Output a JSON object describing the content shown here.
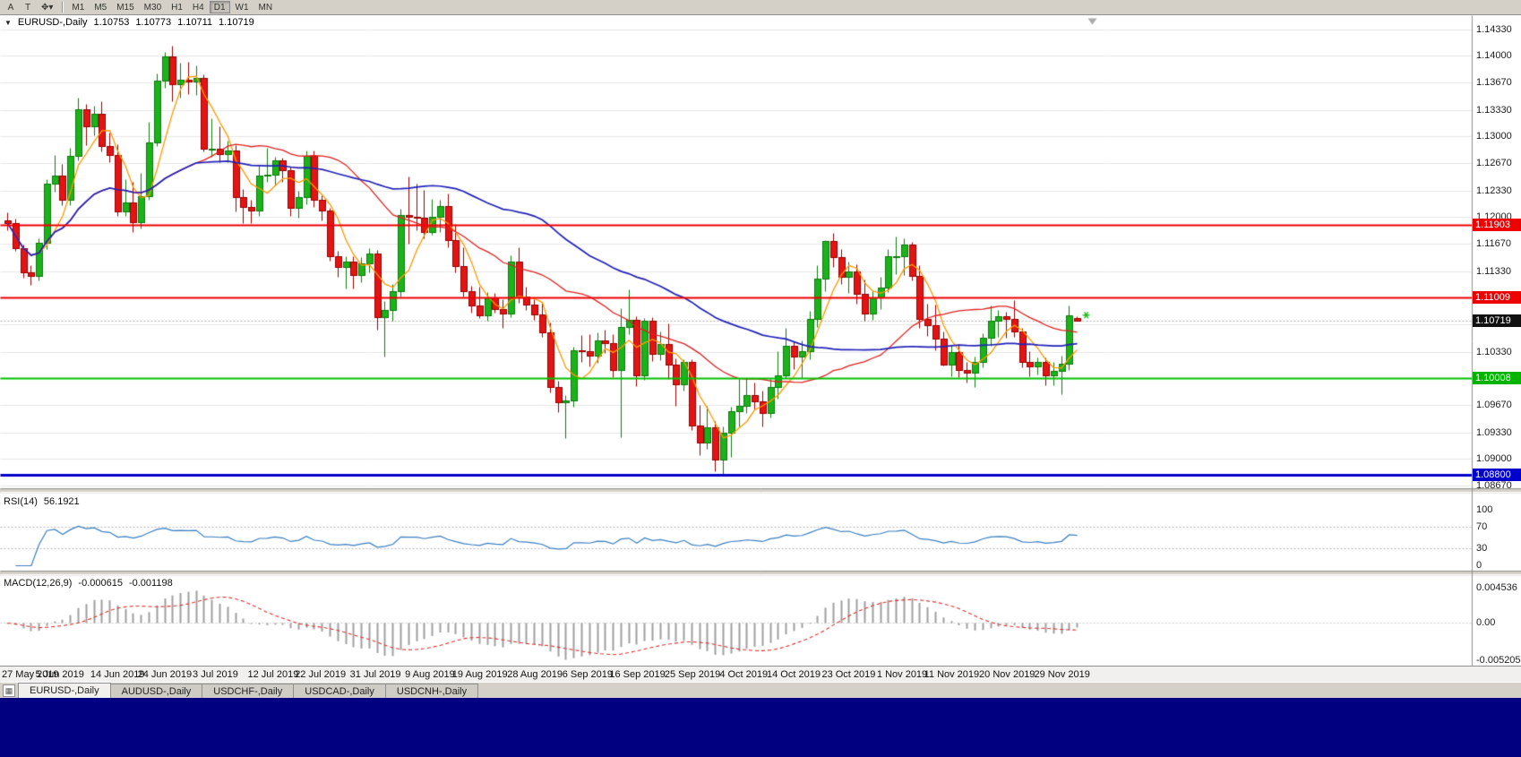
{
  "toolbar": {
    "left_buttons": [
      {
        "name": "annotation-a",
        "label": "A"
      },
      {
        "name": "text-tool",
        "label": "T"
      },
      {
        "name": "pointer-tool",
        "label": "✥",
        "caret": "▾"
      }
    ],
    "timeframes": [
      "M1",
      "M5",
      "M15",
      "M30",
      "H1",
      "H4",
      "D1",
      "W1",
      "MN"
    ],
    "active_timeframe": "D1"
  },
  "chart": {
    "title": {
      "dropdown_icon": "▼",
      "symbol": "EURUSD-,Daily",
      "open": "1.10753",
      "high": "1.10773",
      "low": "1.10711",
      "close": "1.10719"
    },
    "price_axis_labels": [
      "1.14330",
      "1.14000",
      "1.13670",
      "1.13330",
      "1.13000",
      "1.12670",
      "1.12330",
      "1.12000",
      "1.11670",
      "1.11330",
      "1.11000",
      "1.10670",
      "1.10330",
      "1.10000",
      "1.09670",
      "1.09330",
      "1.09000",
      "1.08670"
    ],
    "price_tags": [
      {
        "name": "resistance-tag-upper",
        "text": "1.11903",
        "bg": "#ee0000"
      },
      {
        "name": "resistance-tag-lower",
        "text": "1.11009",
        "bg": "#ee0000"
      },
      {
        "name": "current-price-tag",
        "text": "1.10719",
        "bg": "#111111"
      },
      {
        "name": "support-tag",
        "text": "1.10008",
        "bg": "#00b400"
      },
      {
        "name": "lower-level-tag",
        "text": "1.08800",
        "bg": "#0000cc"
      }
    ],
    "level_lines": [
      {
        "price": 1.11903,
        "color": "#ee0000",
        "width": 2
      },
      {
        "price": 1.11009,
        "color": "#ee0000",
        "width": 2
      },
      {
        "price": 1.10008,
        "color": "#00c000",
        "width": 2
      },
      {
        "price": 1.088,
        "color": "#0000cc",
        "width": 3
      }
    ],
    "current_price_line": {
      "price": 1.10719,
      "color": "#b0b0b0"
    },
    "signal_marker": {
      "index": 136,
      "price": 1.1079,
      "color": "#00bb00"
    },
    "date_labels": [
      {
        "i": 0,
        "t": "27 May 2019"
      },
      {
        "i": 7,
        "t": "5 Jun 2019"
      },
      {
        "i": 14,
        "t": "14 Jun 2019"
      },
      {
        "i": 20,
        "t": "24 Jun 2019"
      },
      {
        "i": 27,
        "t": "3 Jul 2019"
      },
      {
        "i": 34,
        "t": "12 Jul 2019"
      },
      {
        "i": 40,
        "t": "22 Jul 2019"
      },
      {
        "i": 47,
        "t": "31 Jul 2019"
      },
      {
        "i": 54,
        "t": "9 Aug 2019"
      },
      {
        "i": 60,
        "t": "19 Aug 2019"
      },
      {
        "i": 67,
        "t": "28 Aug 2019"
      },
      {
        "i": 74,
        "t": "6 Sep 2019"
      },
      {
        "i": 80,
        "t": "16 Sep 2019"
      },
      {
        "i": 87,
        "t": "25 Sep 2019"
      },
      {
        "i": 94,
        "t": "4 Oct 2019"
      },
      {
        "i": 100,
        "t": "14 Oct 2019"
      },
      {
        "i": 107,
        "t": "23 Oct 2019"
      },
      {
        "i": 114,
        "t": "1 Nov 2019"
      },
      {
        "i": 120,
        "t": "11 Nov 2019"
      },
      {
        "i": 127,
        "t": "20 Nov 2019"
      },
      {
        "i": 134,
        "t": "29 Nov 2019"
      }
    ]
  },
  "chart_data": {
    "type": "candlestick",
    "symbol": "EURUSD",
    "timeframe": "Daily",
    "x_range": [
      "27 May 2019",
      "3 Dec 2019"
    ],
    "price_range": [
      1.0865,
      1.1448
    ],
    "up_color": "#1cb21c",
    "down_color": "#e41414",
    "candles": [
      [
        1.1196,
        1.1206,
        1.1184,
        1.1193
      ],
      [
        1.1193,
        1.1198,
        1.1158,
        1.1162
      ],
      [
        1.1162,
        1.1166,
        1.1125,
        1.1131
      ],
      [
        1.1131,
        1.114,
        1.1116,
        1.1127
      ],
      [
        1.1127,
        1.1174,
        1.1122,
        1.1168
      ],
      [
        1.1168,
        1.1247,
        1.116,
        1.1241
      ],
      [
        1.1241,
        1.1277,
        1.1232,
        1.1252
      ],
      [
        1.1252,
        1.1266,
        1.1215,
        1.1222
      ],
      [
        1.1222,
        1.1286,
        1.1215,
        1.1276
      ],
      [
        1.1276,
        1.1348,
        1.127,
        1.1334
      ],
      [
        1.1334,
        1.134,
        1.1289,
        1.1312
      ],
      [
        1.1312,
        1.1338,
        1.1301,
        1.1328
      ],
      [
        1.1328,
        1.1344,
        1.1281,
        1.1288
      ],
      [
        1.1288,
        1.1305,
        1.1268,
        1.1277
      ],
      [
        1.1277,
        1.129,
        1.1201,
        1.1207
      ],
      [
        1.1207,
        1.1247,
        1.1202,
        1.1218
      ],
      [
        1.1218,
        1.1244,
        1.1181,
        1.1194
      ],
      [
        1.1194,
        1.1255,
        1.1186,
        1.1226
      ],
      [
        1.1226,
        1.1318,
        1.1222,
        1.1293
      ],
      [
        1.1293,
        1.1378,
        1.1288,
        1.1369
      ],
      [
        1.1369,
        1.1405,
        1.136,
        1.1399
      ],
      [
        1.1399,
        1.1412,
        1.1344,
        1.1365
      ],
      [
        1.1365,
        1.1391,
        1.1348,
        1.137
      ],
      [
        1.137,
        1.1392,
        1.1352,
        1.1368
      ],
      [
        1.1368,
        1.1388,
        1.1351,
        1.1373
      ],
      [
        1.1373,
        1.1377,
        1.1281,
        1.1285
      ],
      [
        1.1285,
        1.1322,
        1.1275,
        1.1285
      ],
      [
        1.1285,
        1.1312,
        1.1268,
        1.1278
      ],
      [
        1.1278,
        1.1295,
        1.1268,
        1.1283
      ],
      [
        1.1283,
        1.1289,
        1.1207,
        1.1225
      ],
      [
        1.1225,
        1.1235,
        1.1193,
        1.1213
      ],
      [
        1.1213,
        1.1222,
        1.1193,
        1.1208
      ],
      [
        1.1208,
        1.1264,
        1.1202,
        1.1252
      ],
      [
        1.1252,
        1.1286,
        1.1244,
        1.1253
      ],
      [
        1.1253,
        1.1275,
        1.1239,
        1.127
      ],
      [
        1.127,
        1.1274,
        1.1244,
        1.1258
      ],
      [
        1.1258,
        1.1262,
        1.1202,
        1.1211
      ],
      [
        1.1211,
        1.1233,
        1.1199,
        1.1225
      ],
      [
        1.1225,
        1.1282,
        1.1216,
        1.1276
      ],
      [
        1.1276,
        1.1282,
        1.1213,
        1.1221
      ],
      [
        1.1221,
        1.1227,
        1.1196,
        1.1208
      ],
      [
        1.1208,
        1.1212,
        1.1146,
        1.1151
      ],
      [
        1.1151,
        1.1158,
        1.1126,
        1.1138
      ],
      [
        1.1138,
        1.1152,
        1.1112,
        1.1145
      ],
      [
        1.1145,
        1.1151,
        1.1111,
        1.1128
      ],
      [
        1.1128,
        1.115,
        1.1119,
        1.1143
      ],
      [
        1.1143,
        1.1162,
        1.1131,
        1.1155
      ],
      [
        1.1155,
        1.1159,
        1.106,
        1.1076
      ],
      [
        1.1076,
        1.1096,
        1.1027,
        1.1085
      ],
      [
        1.1085,
        1.1117,
        1.1072,
        1.1108
      ],
      [
        1.1108,
        1.121,
        1.1101,
        1.1203
      ],
      [
        1.1203,
        1.125,
        1.1167,
        1.12
      ],
      [
        1.12,
        1.1242,
        1.1184,
        1.1199
      ],
      [
        1.1199,
        1.1234,
        1.1174,
        1.1181
      ],
      [
        1.1181,
        1.1223,
        1.1178,
        1.12
      ],
      [
        1.12,
        1.1222,
        1.1181,
        1.1214
      ],
      [
        1.1214,
        1.1229,
        1.1163,
        1.1171
      ],
      [
        1.1171,
        1.1191,
        1.1131,
        1.1139
      ],
      [
        1.1139,
        1.1163,
        1.1102,
        1.1108
      ],
      [
        1.1108,
        1.1115,
        1.1081,
        1.109
      ],
      [
        1.109,
        1.1114,
        1.1075,
        1.1078
      ],
      [
        1.1078,
        1.1107,
        1.1072,
        1.11
      ],
      [
        1.11,
        1.1106,
        1.1082,
        1.1086
      ],
      [
        1.1086,
        1.1098,
        1.1063,
        1.108
      ],
      [
        1.108,
        1.1153,
        1.1076,
        1.1145
      ],
      [
        1.1145,
        1.1163,
        1.1094,
        1.1101
      ],
      [
        1.1101,
        1.1114,
        1.1085,
        1.1092
      ],
      [
        1.1092,
        1.1098,
        1.1073,
        1.1079
      ],
      [
        1.1079,
        1.1094,
        1.1052,
        1.1057
      ],
      [
        1.1057,
        1.1069,
        1.0983,
        1.0989
      ],
      [
        1.0989,
        1.0997,
        1.0958,
        1.097
      ],
      [
        1.097,
        1.0979,
        1.0926,
        1.0973
      ],
      [
        1.0973,
        1.1039,
        1.0965,
        1.1035
      ],
      [
        1.1035,
        1.1054,
        1.1021,
        1.1034
      ],
      [
        1.1034,
        1.1055,
        1.1015,
        1.1028
      ],
      [
        1.1028,
        1.1057,
        1.1019,
        1.1047
      ],
      [
        1.1047,
        1.106,
        1.1032,
        1.1044
      ],
      [
        1.1044,
        1.1055,
        1.1002,
        1.1011
      ],
      [
        1.1011,
        1.1087,
        1.0927,
        1.1064
      ],
      [
        1.1064,
        1.111,
        1.1055,
        1.1073
      ],
      [
        1.1073,
        1.1077,
        1.099,
        1.1004
      ],
      [
        1.1004,
        1.1075,
        1.0998,
        1.1072
      ],
      [
        1.1072,
        1.1076,
        1.1022,
        1.1031
      ],
      [
        1.1031,
        1.1058,
        1.1023,
        1.1043
      ],
      [
        1.1043,
        1.1068,
        1.0999,
        1.1017
      ],
      [
        1.1017,
        1.1025,
        1.0966,
        1.0993
      ],
      [
        1.0993,
        1.1024,
        1.0985,
        1.1021
      ],
      [
        1.1021,
        1.1024,
        1.0936,
        1.0942
      ],
      [
        1.0942,
        1.0967,
        1.0905,
        1.0921
      ],
      [
        1.0921,
        1.0966,
        1.0913,
        1.0939
      ],
      [
        1.0939,
        1.0947,
        1.0885,
        1.0899
      ],
      [
        1.0899,
        1.0941,
        1.0879,
        1.0933
      ],
      [
        1.0933,
        1.0965,
        1.0903,
        1.0959
      ],
      [
        1.0959,
        1.0999,
        1.0941,
        1.0966
      ],
      [
        1.0966,
        1.1,
        1.0957,
        1.0979
      ],
      [
        1.0979,
        1.0995,
        1.0962,
        1.0972
      ],
      [
        1.0972,
        1.0985,
        1.0941,
        1.0957
      ],
      [
        1.0957,
        1.0999,
        1.0952,
        1.0989
      ],
      [
        1.0989,
        1.1034,
        1.0975,
        1.1004
      ],
      [
        1.1004,
        1.1063,
        1.1001,
        1.104
      ],
      [
        1.104,
        1.1046,
        1.1012,
        1.1027
      ],
      [
        1.1027,
        1.1047,
        1.1001,
        1.1034
      ],
      [
        1.1034,
        1.1084,
        1.1024,
        1.1074
      ],
      [
        1.1074,
        1.114,
        1.1064,
        1.1124
      ],
      [
        1.1124,
        1.1172,
        1.1108,
        1.117
      ],
      [
        1.117,
        1.118,
        1.1138,
        1.115
      ],
      [
        1.115,
        1.116,
        1.1117,
        1.1126
      ],
      [
        1.1126,
        1.1145,
        1.1106,
        1.1133
      ],
      [
        1.1133,
        1.1142,
        1.1093,
        1.1105
      ],
      [
        1.1105,
        1.1123,
        1.1072,
        1.108
      ],
      [
        1.108,
        1.1108,
        1.1073,
        1.11
      ],
      [
        1.11,
        1.1126,
        1.1086,
        1.1113
      ],
      [
        1.1113,
        1.116,
        1.1107,
        1.1151
      ],
      [
        1.1151,
        1.1176,
        1.1129,
        1.1152
      ],
      [
        1.1152,
        1.1174,
        1.1128,
        1.1166
      ],
      [
        1.1166,
        1.1169,
        1.1122,
        1.1127
      ],
      [
        1.1127,
        1.114,
        1.1063,
        1.1074
      ],
      [
        1.1074,
        1.1093,
        1.1053,
        1.1066
      ],
      [
        1.1066,
        1.1092,
        1.1035,
        1.1049
      ],
      [
        1.1049,
        1.1058,
        1.1016,
        1.1017
      ],
      [
        1.1017,
        1.1042,
        1.1003,
        1.1033
      ],
      [
        1.1033,
        1.1043,
        1.1002,
        1.101
      ],
      [
        1.101,
        1.1021,
        1.0995,
        1.1007
      ],
      [
        1.1007,
        1.1027,
        1.0989,
        1.1021
      ],
      [
        1.1021,
        1.1056,
        1.1014,
        1.1051
      ],
      [
        1.1051,
        1.109,
        1.1041,
        1.1072
      ],
      [
        1.1072,
        1.1085,
        1.1052,
        1.1077
      ],
      [
        1.1077,
        1.1083,
        1.1051,
        1.1074
      ],
      [
        1.1074,
        1.1097,
        1.1052,
        1.1058
      ],
      [
        1.1058,
        1.1063,
        1.1014,
        1.1021
      ],
      [
        1.1021,
        1.1034,
        1.1003,
        1.1015
      ],
      [
        1.1015,
        1.1026,
        1.1005,
        1.1021
      ],
      [
        1.1021,
        1.1026,
        1.0992,
        1.1004
      ],
      [
        1.1004,
        1.1021,
        1.0992,
        1.1009
      ],
      [
        1.1009,
        1.1028,
        1.0981,
        1.1018
      ],
      [
        1.1018,
        1.109,
        1.1011,
        1.1078
      ],
      [
        1.10753,
        1.10773,
        1.10711,
        1.10719
      ]
    ],
    "moving_averages": [
      {
        "name": "fast",
        "period": 5,
        "method": "sma",
        "color": "#ff9900"
      },
      {
        "name": "medium",
        "period": 25,
        "method": "sma",
        "color": "#e02020"
      },
      {
        "name": "slow",
        "period": 50,
        "method": "sma",
        "color": "#2222bb"
      }
    ],
    "rsi": {
      "label": "RSI(14)",
      "value": "56.1921",
      "period": 14,
      "levels": [
        70,
        30
      ],
      "axis_labels": [
        "100",
        "70",
        "30",
        "0"
      ],
      "color": "#3a7fc1"
    },
    "macd": {
      "label": "MACD(12,26,9)",
      "values": [
        "-0.000615",
        "-0.001198"
      ],
      "fast": 12,
      "slow": 26,
      "signal": 9,
      "axis_labels": [
        "0.004536",
        "0.00",
        "-0.005205"
      ],
      "histogram_color": "#a0a0a0",
      "signal_color": "#e03030"
    }
  },
  "tabs": {
    "icon": "▦",
    "items": [
      "EURUSD-,Daily",
      "AUDUSD-,Daily",
      "USDCHF-,Daily",
      "USDCAD-,Daily",
      "USDCNH-,Daily"
    ],
    "active_index": 0
  }
}
